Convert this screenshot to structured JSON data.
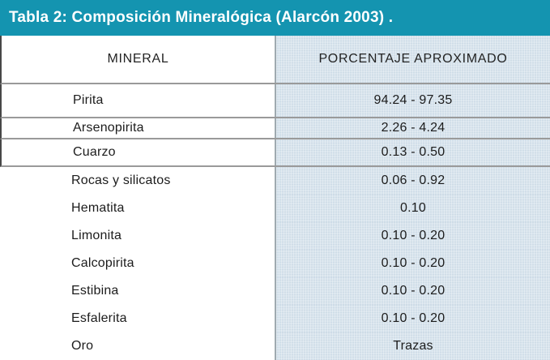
{
  "title_bar": {
    "label": "Tabla 2: Composición Mineralógica (Alarcón 2003) ."
  },
  "table": {
    "columns": {
      "mineral": "MINERAL",
      "porcentaje": "PORCENTAJE APROXIMADO"
    },
    "rows": [
      {
        "mineral": "Pirita",
        "porcentaje": "94.24 - 97.35"
      },
      {
        "mineral": "Arsenopirita",
        "porcentaje": "2.26 - 4.24"
      },
      {
        "mineral": "Cuarzo",
        "porcentaje": "0.13 - 0.50"
      },
      {
        "mineral": "Rocas y silicatos",
        "porcentaje": "0.06 - 0.92"
      },
      {
        "mineral": "Hematita",
        "porcentaje": "0.10"
      },
      {
        "mineral": "Limonita",
        "porcentaje": "0.10 - 0.20"
      },
      {
        "mineral": "Calcopirita",
        "porcentaje": "0.10 - 0.20"
      },
      {
        "mineral": "Estibina",
        "porcentaje": "0.10 - 0.20"
      },
      {
        "mineral": "Esfalerita",
        "porcentaje": "0.10 - 0.20"
      },
      {
        "mineral": "Oro",
        "porcentaje": "Trazas"
      }
    ]
  },
  "colors": {
    "accent_teal": "#1494b0",
    "column_blue": "#d8e4ed",
    "rule_gray": "#9a9a9a",
    "divider_gray": "#9faab0",
    "left_border_dark": "#474747"
  },
  "chart_data": {
    "type": "table",
    "title": "Tabla 2: Composición Mineralógica (Alarcón 2003) .",
    "columns": [
      "MINERAL",
      "PORCENTAJE APROXIMADO"
    ],
    "rows": [
      [
        "Pirita",
        "94.24 - 97.35"
      ],
      [
        "Arsenopirita",
        "2.26 - 4.24"
      ],
      [
        "Cuarzo",
        "0.13 - 0.50"
      ],
      [
        "Rocas y silicatos",
        "0.06 - 0.92"
      ],
      [
        "Hematita",
        "0.10"
      ],
      [
        "Limonita",
        "0.10 - 0.20"
      ],
      [
        "Calcopirita",
        "0.10 - 0.20"
      ],
      [
        "Estibina",
        "0.10 - 0.20"
      ],
      [
        "Esfalerita",
        "0.10 - 0.20"
      ],
      [
        "Oro",
        "Trazas"
      ]
    ]
  }
}
